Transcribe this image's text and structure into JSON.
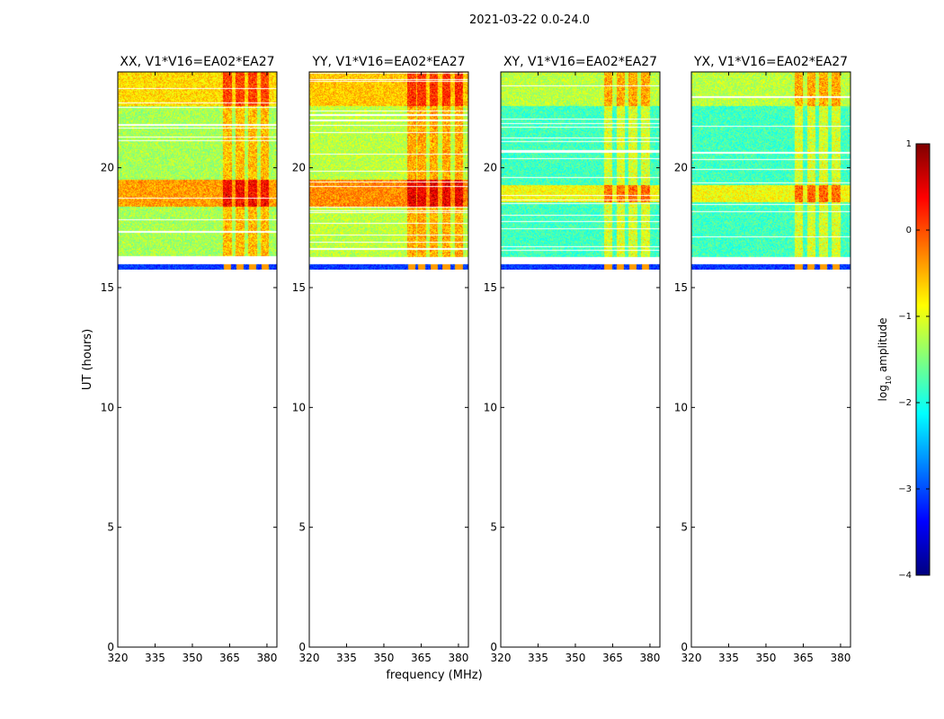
{
  "figure": {
    "suptitle": "2021-03-22 0.0-24.0",
    "xlabel": "frequency (MHz)",
    "ylabel": "UT (hours)"
  },
  "colorbar": {
    "label": "log",
    "label_sub": "10",
    "label_tail": " amplitude",
    "range": [
      -4,
      1
    ],
    "ticks": [
      "1",
      "0",
      "−1",
      "−2",
      "−3",
      "−4"
    ],
    "tick_values": [
      1,
      0,
      -1,
      -2,
      -3,
      -4
    ],
    "colormap": "jet",
    "colors": [
      "#00007f",
      "#0000ff",
      "#007fff",
      "#00ffff",
      "#7fff7f",
      "#ffff00",
      "#ff7f00",
      "#ff0000",
      "#7f0000"
    ]
  },
  "chart_data": [
    {
      "type": "heatmap",
      "title": "XX, V1*V16=EA02*EA27",
      "xlim": [
        320,
        384
      ],
      "ylim": [
        0,
        24
      ],
      "xticks": [
        320,
        335,
        350,
        365,
        380
      ],
      "xticklabels": [
        "320",
        "335",
        "350",
        "365",
        "380"
      ],
      "yticks": [
        0,
        5,
        10,
        15,
        20
      ],
      "yticklabels": [
        "0",
        "5",
        "10",
        "15",
        "20"
      ],
      "data_ut_range": [
        15.75,
        24.0
      ],
      "base_log_amp": -1.3,
      "rfi_channels_mhz": [
        364,
        369,
        374,
        379
      ],
      "strong_ut_band": [
        18.4,
        19.5
      ]
    },
    {
      "type": "heatmap",
      "title": "YY, V1*V16=EA02*EA27",
      "xlim": [
        320,
        384
      ],
      "ylim": [
        0,
        24
      ],
      "xticks": [
        320,
        335,
        350,
        365,
        380
      ],
      "xticklabels": [
        "320",
        "335",
        "350",
        "365",
        "380"
      ],
      "yticks": [
        0,
        5,
        10,
        15,
        20
      ],
      "yticklabels": [
        "0",
        "5",
        "10",
        "15",
        "20"
      ],
      "data_ut_range": [
        15.75,
        24.0
      ],
      "base_log_amp": -1.2,
      "rfi_channels_mhz": [
        361,
        365,
        370,
        375,
        380
      ],
      "strong_ut_band": [
        18.4,
        19.5
      ]
    },
    {
      "type": "heatmap",
      "title": "XY, V1*V16=EA02*EA27",
      "xlim": [
        320,
        384
      ],
      "ylim": [
        0,
        24
      ],
      "xticks": [
        320,
        335,
        350,
        365,
        380
      ],
      "xticklabels": [
        "320",
        "335",
        "350",
        "365",
        "380"
      ],
      "yticks": [
        0,
        5,
        10,
        15,
        20
      ],
      "yticklabels": [
        "0",
        "5",
        "10",
        "15",
        "20"
      ],
      "data_ut_range": [
        15.75,
        24.0
      ],
      "base_log_amp": -1.8,
      "rfi_channels_mhz": [
        363,
        368,
        373,
        378
      ],
      "strong_ut_band": [
        18.6,
        19.3
      ]
    },
    {
      "type": "heatmap",
      "title": "YX, V1*V16=EA02*EA27",
      "xlim": [
        320,
        384
      ],
      "ylim": [
        0,
        24
      ],
      "xticks": [
        320,
        335,
        350,
        365,
        380
      ],
      "xticklabels": [
        "320",
        "335",
        "350",
        "365",
        "380"
      ],
      "yticks": [
        0,
        5,
        10,
        15,
        20
      ],
      "yticklabels": [
        "0",
        "5",
        "10",
        "15",
        "20"
      ],
      "data_ut_range": [
        15.75,
        24.0
      ],
      "base_log_amp": -1.8,
      "rfi_channels_mhz": [
        363,
        368,
        373,
        378
      ],
      "strong_ut_band": [
        18.6,
        19.3
      ]
    }
  ]
}
